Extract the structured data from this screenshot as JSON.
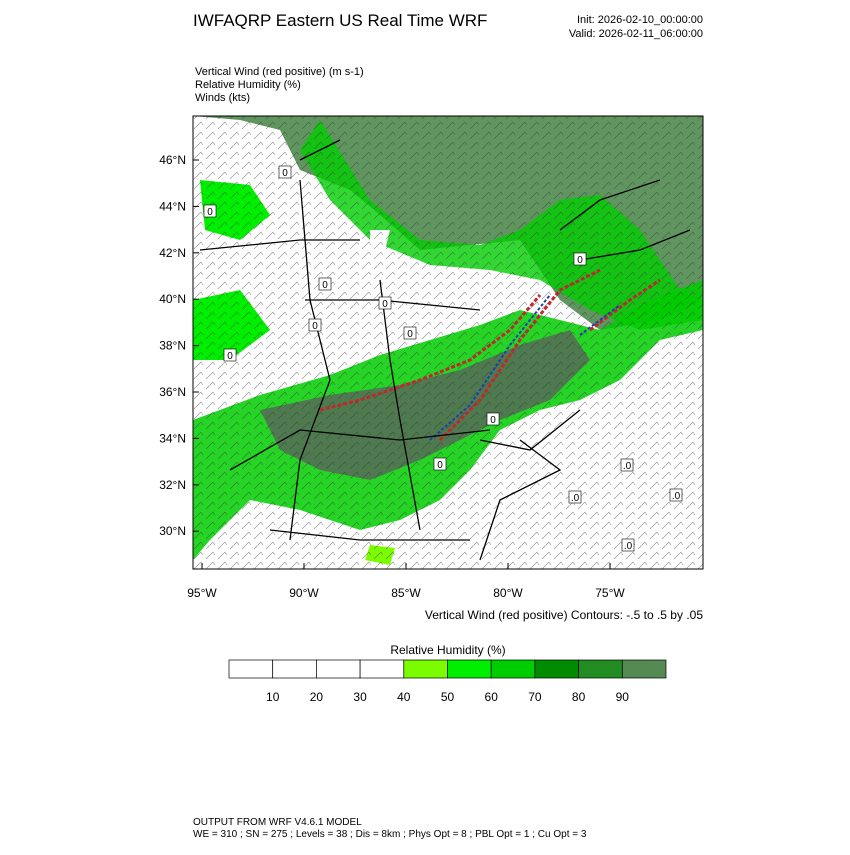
{
  "header": {
    "title": "IWFAQRP Eastern US Real Time WRF",
    "init": "Init: 2026-02-10_00:00:00",
    "valid": "Valid: 2026-02-11_06:00:00"
  },
  "fields": [
    "Vertical Wind (red positive)   (m s-1)",
    "Relative Humidity   (%)",
    "Winds   (kts)"
  ],
  "map": {
    "lat_labels": [
      "46°N",
      "44°N",
      "42°N",
      "40°N",
      "38°N",
      "36°N",
      "34°N",
      "32°N",
      "30°N"
    ],
    "lon_labels": [
      "95°W",
      "90°W",
      "85°W",
      "80°W",
      "75°W"
    ],
    "contour_labels": [
      "0",
      "0",
      "0",
      "0",
      "0",
      "0",
      "0",
      "0",
      "0",
      "0",
      ".0",
      ".0",
      ".0",
      ".0"
    ],
    "caption": "Vertical Wind (red positive) Contours: -.5 to .5 by .05"
  },
  "colorbar": {
    "title": "Relative Humidity  (%)",
    "colors": [
      "#ffffff",
      "#ffffff",
      "#ffffff",
      "#ffffff",
      "#7cfc00",
      "#00ee00",
      "#00cd00",
      "#008b00",
      "#228b22",
      "#548b54"
    ],
    "labels": [
      10,
      20,
      30,
      40,
      50,
      60,
      70,
      80,
      90
    ]
  },
  "footer": {
    "line1": "OUTPUT FROM WRF V4.6.1 MODEL",
    "line2": "WE = 310 ; SN = 275 ; Levels = 38 ; Dis = 8km ; Phys Opt = 8 ; PBL Opt = 1 ; Cu Opt = 3"
  }
}
